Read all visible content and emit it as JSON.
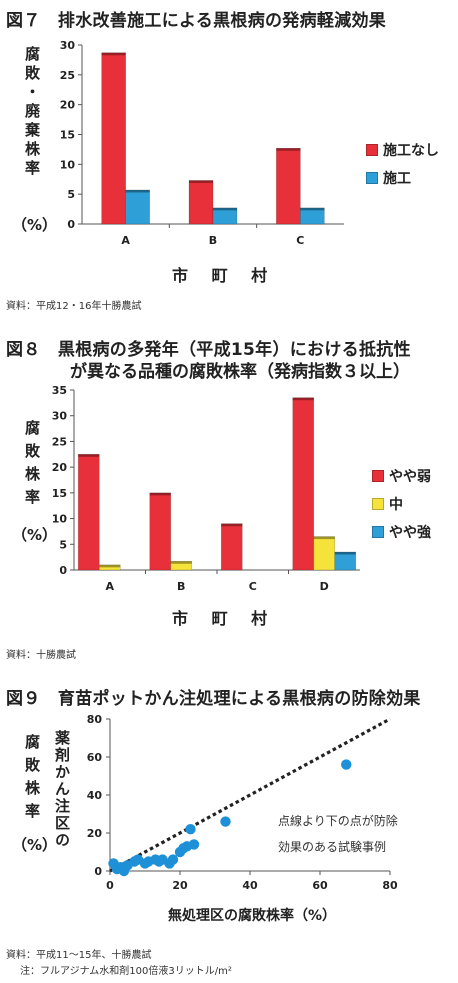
{
  "chart_data": [
    {
      "type": "bar",
      "title": "図７　排水改善施工による黒根病の発病軽減効果",
      "ylabel": "腐敗・廃棄株率",
      "yunit": "（%）",
      "xlabel": "市 町 村",
      "categories": [
        "A",
        "B",
        "C"
      ],
      "ylim": [
        0,
        30
      ],
      "yticks": [
        0,
        5,
        10,
        15,
        20,
        25,
        30
      ],
      "legend_position": "right",
      "series": [
        {
          "name": "施工なし",
          "color": "#e8303a",
          "values": [
            28.7,
            7.3,
            12.7
          ]
        },
        {
          "name": "施工",
          "color": "#2f9fd8",
          "values": [
            5.7,
            2.7,
            2.7
          ]
        }
      ],
      "source": "資料：平成12・16年十勝農試"
    },
    {
      "type": "bar",
      "title": "図８　黒根病の多発年（平成15年）における抵抗性",
      "title_line2": "が異なる品種の腐敗株率（発病指数３以上）",
      "ylabel": "腐敗株率",
      "yunit": "（%）",
      "xlabel": "市 町 村",
      "categories": [
        "A",
        "B",
        "C",
        "D"
      ],
      "ylim": [
        0,
        35
      ],
      "yticks": [
        0,
        5,
        10,
        15,
        20,
        25,
        30,
        35
      ],
      "legend_position": "right",
      "series": [
        {
          "name": "やや弱",
          "color": "#e8303a",
          "values": [
            22.5,
            15.0,
            9.0,
            33.5
          ]
        },
        {
          "name": "中",
          "color": "#f5e23a",
          "values": [
            1.0,
            1.7,
            0,
            6.5
          ]
        },
        {
          "name": "やや強",
          "color": "#2f9fd8",
          "values": [
            0,
            0,
            0,
            3.5
          ]
        }
      ],
      "source": "資料：十勝農試"
    },
    {
      "type": "scatter",
      "title": "図９　育苗ポットかん注処理による黒根病の防除効果",
      "ylabel": "薬剤かん注区の腐敗株率",
      "ylabel_main": "腐敗株率",
      "ylabel_side": "薬剤かん注区の",
      "yunit": "（%）",
      "xlabel": "無処理区の腐敗株率（%）",
      "xlim": [
        0,
        80
      ],
      "ylim": [
        0,
        80
      ],
      "xticks": [
        0,
        20,
        40,
        60,
        80
      ],
      "yticks": [
        0,
        20,
        40,
        60,
        80
      ],
      "point_color": "#1e90d8",
      "reference_line": {
        "from": [
          0,
          0
        ],
        "to": [
          80,
          80
        ],
        "style": "dotted"
      },
      "annotation": [
        "点線より下の点が防除",
        "効果のある試験事例"
      ],
      "points": [
        [
          1,
          4
        ],
        [
          2,
          1
        ],
        [
          3,
          2
        ],
        [
          4,
          0
        ],
        [
          5,
          3
        ],
        [
          7,
          5
        ],
        [
          8,
          6
        ],
        [
          10,
          4
        ],
        [
          11,
          5
        ],
        [
          13,
          6
        ],
        [
          14,
          5
        ],
        [
          15,
          6
        ],
        [
          17,
          4
        ],
        [
          18,
          6
        ],
        [
          20,
          10
        ],
        [
          21,
          12
        ],
        [
          22,
          13
        ],
        [
          23,
          22
        ],
        [
          24,
          14
        ],
        [
          33,
          26
        ],
        [
          67.5,
          56
        ]
      ],
      "source": "資料：平成11～15年、十勝農試",
      "note": "注：フルアジナム水和剤100倍液3リットル/m²"
    }
  ]
}
